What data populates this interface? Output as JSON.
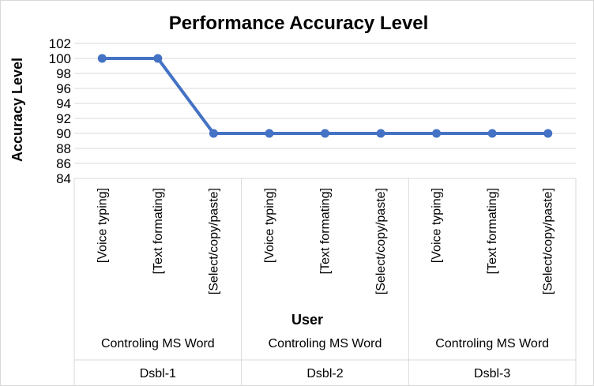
{
  "chart_data": {
    "type": "line",
    "title": "Performance Accuracy Level",
    "xlabel": "User",
    "ylabel": "Accuracy Level",
    "ylim": [
      84,
      102
    ],
    "yticks": [
      84,
      86,
      88,
      90,
      92,
      94,
      96,
      98,
      100,
      102
    ],
    "grid": true,
    "legend": "none",
    "line_color": "#4472c4",
    "categories": [
      "[Voice typing]",
      "[Text formating]",
      "[Select/copy/paste]",
      "[Voice typing]",
      "[Text formating]",
      "[Select/copy/paste]",
      "[Voice typing]",
      "[Text formating]",
      "[Select/copy/paste]"
    ],
    "category_groups_level2": [
      "Controling MS Word",
      "Controling MS Word",
      "Controling MS Word"
    ],
    "category_groups_level1": [
      "Dsbl-1",
      "Dsbl-2",
      "Dsbl-3"
    ],
    "series": [
      {
        "values": [
          100,
          100,
          90,
          90,
          90,
          90,
          90,
          90,
          90
        ]
      }
    ]
  }
}
